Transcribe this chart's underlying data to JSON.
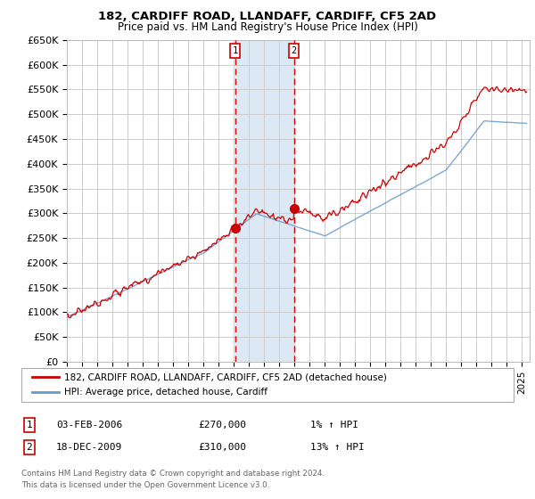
{
  "title1": "182, CARDIFF ROAD, LLANDAFF, CARDIFF, CF5 2AD",
  "title2": "Price paid vs. HM Land Registry's House Price Index (HPI)",
  "ylabel_ticks": [
    "£0",
    "£50K",
    "£100K",
    "£150K",
    "£200K",
    "£250K",
    "£300K",
    "£350K",
    "£400K",
    "£450K",
    "£500K",
    "£550K",
    "£600K",
    "£650K"
  ],
  "ytick_values": [
    0,
    50000,
    100000,
    150000,
    200000,
    250000,
    300000,
    350000,
    400000,
    450000,
    500000,
    550000,
    600000,
    650000
  ],
  "xlim_start": 1995.0,
  "xlim_end": 2025.5,
  "ylim_min": 0,
  "ylim_max": 650000,
  "purchase1": {
    "date_num": 2006.085,
    "price": 270000,
    "label": "1",
    "pct": "1%",
    "dir": "↑",
    "date_str": "03-FEB-2006"
  },
  "purchase2": {
    "date_num": 2009.962,
    "price": 310000,
    "label": "2",
    "pct": "13%",
    "dir": "↑",
    "date_str": "18-DEC-2009"
  },
  "legend_line1": "182, CARDIFF ROAD, LLANDAFF, CARDIFF, CF5 2AD (detached house)",
  "legend_line2": "HPI: Average price, detached house, Cardiff",
  "footer1": "Contains HM Land Registry data © Crown copyright and database right 2024.",
  "footer2": "This data is licensed under the Open Government Licence v3.0.",
  "table_row1": [
    "1",
    "03-FEB-2006",
    "£270,000",
    "1% ↑ HPI"
  ],
  "table_row2": [
    "2",
    "18-DEC-2009",
    "£310,000",
    "13% ↑ HPI"
  ],
  "bg_highlight_color": "#dce9f5",
  "dashed_line_color": "#cc0000",
  "hpi_line_color": "#6699cc",
  "price_line_color": "#cc0000",
  "grid_color": "#cccccc",
  "purchase1_x": 2006.085,
  "purchase2_x": 2009.962
}
